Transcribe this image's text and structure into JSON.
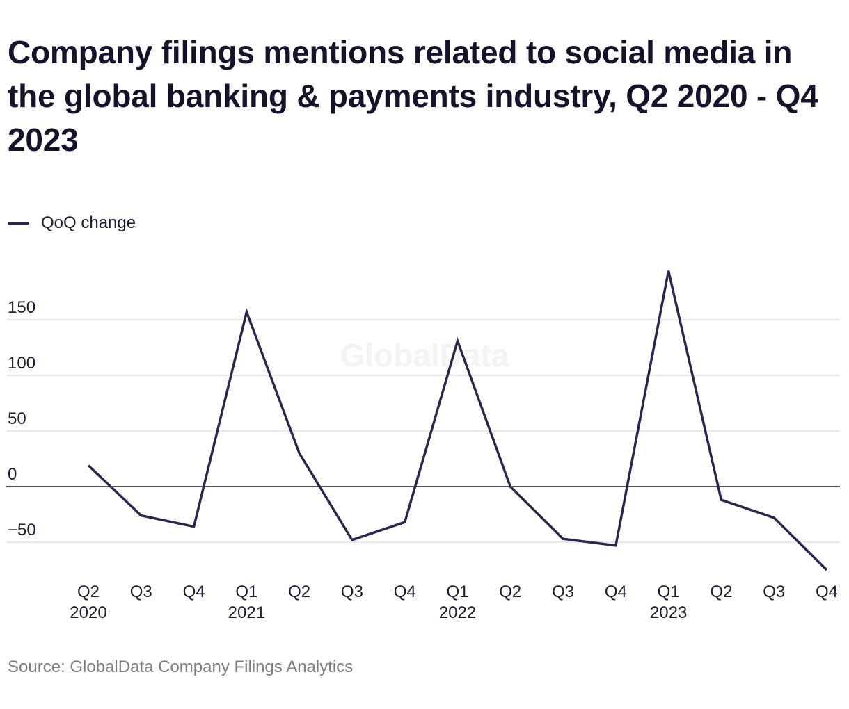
{
  "title": "Company filings mentions related to social media in the global banking & payments industry, Q2 2020 - Q4 2023",
  "source": "Source: GlobalData Company Filings Analytics",
  "watermark": "GlobalData",
  "colors": {
    "line": "#2e2450",
    "grid": "#d9d9dd",
    "zero": "#1a1a1a",
    "text": "#1d1c30",
    "source": "#7d7d86"
  },
  "chart_data": {
    "type": "line",
    "title": "Company filings mentions related to social media in the global banking & payments industry, Q2 2020 - Q4 2023",
    "xlabel": "",
    "ylabel": "",
    "legend_position": "top-left",
    "grid": true,
    "ylim": [
      -75,
      195
    ],
    "yticks": [
      150,
      100,
      50,
      0,
      -50
    ],
    "ytick_labels": [
      "150",
      "100",
      "50",
      "0",
      "−50"
    ],
    "categories": [
      "Q2 2020",
      "Q3 2020",
      "Q4 2020",
      "Q1 2021",
      "Q2 2021",
      "Q3 2021",
      "Q4 2021",
      "Q1 2022",
      "Q2 2022",
      "Q3 2022",
      "Q4 2022",
      "Q1 2023",
      "Q2 2023",
      "Q3 2023",
      "Q4 2023"
    ],
    "xtick_labels": [
      {
        "quarter": "Q2",
        "year": "2020"
      },
      {
        "quarter": "Q3",
        "year": ""
      },
      {
        "quarter": "Q4",
        "year": ""
      },
      {
        "quarter": "Q1",
        "year": "2021"
      },
      {
        "quarter": "Q2",
        "year": ""
      },
      {
        "quarter": "Q3",
        "year": ""
      },
      {
        "quarter": "Q4",
        "year": ""
      },
      {
        "quarter": "Q1",
        "year": "2022"
      },
      {
        "quarter": "Q2",
        "year": ""
      },
      {
        "quarter": "Q3",
        "year": ""
      },
      {
        "quarter": "Q4",
        "year": ""
      },
      {
        "quarter": "Q1",
        "year": "2023"
      },
      {
        "quarter": "Q2",
        "year": ""
      },
      {
        "quarter": "Q3",
        "year": ""
      },
      {
        "quarter": "Q4",
        "year": ""
      }
    ],
    "series": [
      {
        "name": "QoQ change",
        "values": [
          19,
          -26,
          -36,
          157,
          30,
          -48,
          -32,
          131,
          0,
          -47,
          -53,
          194,
          -12,
          -28,
          -75
        ]
      }
    ]
  }
}
